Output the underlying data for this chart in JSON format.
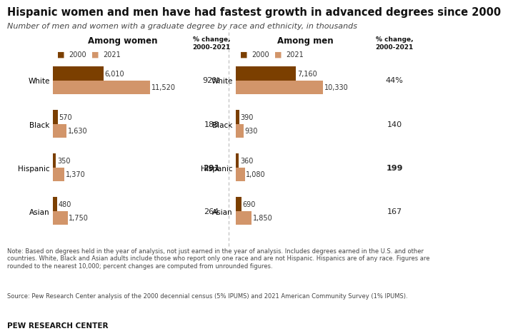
{
  "title": "Hispanic women and men have had fastest growth in advanced degrees since 2000",
  "subtitle": "Number of men and women with a graduate degree by race and ethnicity, in thousands",
  "note": "Note: Based on degrees held in the year of analysis, not just earned in the year of analysis. Includes degrees earned in the U.S. and other\ncountries. White, Black and Asian adults include those who report only one race and are not Hispanic. Hispanics are of any race. Figures are\nrounded to the nearest 10,000; percent changes are computed from unrounded figures.",
  "source": "Source: Pew Research Center analysis of the 2000 decennial census (5% IPUMS) and 2021 American Community Survey (1% IPUMS).",
  "branding": "PEW RESEARCH CENTER",
  "categories": [
    "White",
    "Black",
    "Hispanic",
    "Asian"
  ],
  "women_2000": [
    6010,
    570,
    350,
    480
  ],
  "women_2021": [
    11520,
    1630,
    1370,
    1750
  ],
  "women_pct": [
    "92%",
    "188",
    "291",
    "264"
  ],
  "women_pct_bold": [
    false,
    false,
    true,
    false
  ],
  "men_2000": [
    7160,
    390,
    360,
    690
  ],
  "men_2021": [
    10330,
    930,
    1080,
    1850
  ],
  "men_pct": [
    "44%",
    "140",
    "199",
    "167"
  ],
  "men_pct_bold": [
    false,
    false,
    true,
    false
  ],
  "color_2000": "#7B3F00",
  "color_2021": "#D2956A",
  "bar_height": 0.32,
  "background_color": "#FFFFFF",
  "pct_bg_color": "#F0EBE3",
  "max_women": 12000,
  "max_men": 12000,
  "title_fontsize": 10.5,
  "subtitle_fontsize": 8,
  "label_fontsize": 7,
  "tick_fontsize": 7.5,
  "note_fontsize": 6,
  "among_women_label": "Among women",
  "among_men_label": "Among men",
  "pct_change_label": "% change,\n2000-2021"
}
